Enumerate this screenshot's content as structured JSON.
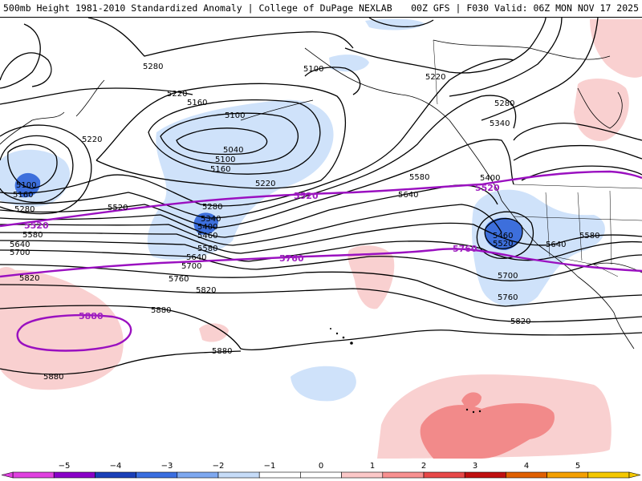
{
  "header": {
    "title_left": "500mb Height 1981-2010 Standardized Anomaly | College of DuPage NEXLAB",
    "title_right": "00Z GFS | F030 Valid: 06Z MON NOV 17 2025"
  },
  "contour_labels": {
    "c5280_a": "5280",
    "c5220_a": "5220",
    "c5160_a": "5160",
    "c5100_a": "5100",
    "c5040": "5040",
    "c5100_b": "5100",
    "c5160_b": "5160",
    "c5220_b": "5220",
    "c5280_b": "5280",
    "c5340_a": "5340",
    "c5400_a": "5400",
    "c5460_a": "5460",
    "c5580_a": "5580",
    "c5640_a": "5640",
    "c5700_a": "5700",
    "c5760_a": "5760",
    "c5820_a": "5820",
    "c5880_a": "5880",
    "c5880_b": "5880",
    "c5880_c": "5880",
    "c5220_c": "5220",
    "c5100_c": "5100",
    "c5160_c": "5160",
    "c5280_c": "5280",
    "c5580_b": "5580",
    "c5640_b": "5640",
    "c5700_b": "5700",
    "c5520_a": "5520",
    "c5220_d": "5220",
    "c5100_d": "5100",
    "c5280_d": "5280",
    "c5340_b": "5340",
    "c5400_b": "5400",
    "c5580_c": "5580",
    "c5640_c": "5640",
    "c5460_b": "5460",
    "c5520_b": "5520",
    "c5640_d": "5640",
    "c5580_d": "5580",
    "c5700_c": "5700",
    "c5760_b": "5760",
    "c5820_b": "5820",
    "c5820_c": "5820"
  },
  "purple_labels": {
    "p5520_a": "5520",
    "p5520_b": "5520",
    "p5520_c": "5520",
    "p5760_a": "5760",
    "p5760_b": "5760",
    "p5880": "5880"
  },
  "colorbar": {
    "ticks": [
      "−5",
      "−4",
      "−3",
      "−2",
      "−1",
      "0",
      "1",
      "2",
      "3",
      "4",
      "5"
    ],
    "colors": [
      "#e040e0",
      "#8a00c8",
      "#1a3fb8",
      "#3a6ee0",
      "#7ea8f0",
      "#c6dcf8",
      "#ffffff",
      "#ffffff",
      "#fcc8c8",
      "#f89090",
      "#e84848",
      "#c01010",
      "#e06000",
      "#f4a000",
      "#f4c800"
    ]
  },
  "colors": {
    "contour": "#000000",
    "purple": "#9a10c0",
    "neg_light": "#cfe2fa",
    "neg_mid": "#9fc1f2",
    "neg_dark": "#3d6fdc",
    "pos_light": "#f9d0d0",
    "pos_mid": "#f28a8a"
  }
}
